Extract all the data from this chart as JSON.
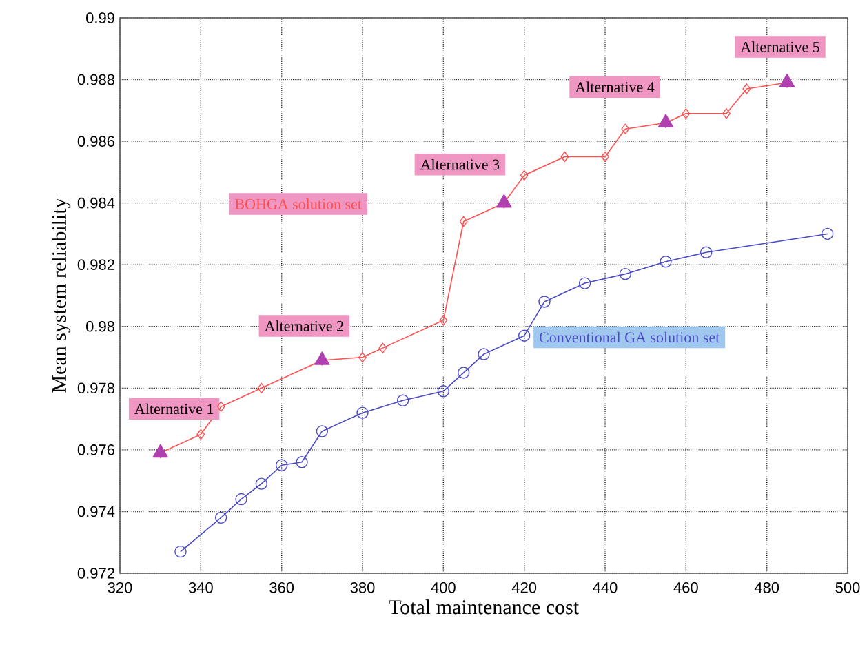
{
  "chart_data": {
    "type": "line",
    "xlabel": "Total maintenance cost",
    "ylabel": "Mean system reliability",
    "xlim": [
      320,
      500
    ],
    "ylim": [
      0.972,
      0.99
    ],
    "xticks": [
      320,
      340,
      360,
      380,
      400,
      420,
      440,
      460,
      480,
      500
    ],
    "yticks": [
      0.972,
      0.974,
      0.976,
      0.978,
      0.98,
      0.982,
      0.984,
      0.986,
      0.988,
      0.99
    ],
    "grid": true,
    "series": [
      {
        "name": "BOHGA solution set",
        "color": "#ff5050",
        "marker": "diamond",
        "x": [
          330,
          340,
          345,
          355,
          370,
          380,
          385,
          400,
          405,
          415,
          420,
          430,
          440,
          445,
          455,
          460,
          470,
          475,
          485
        ],
        "values": [
          0.9759,
          0.9765,
          0.9774,
          0.978,
          0.9789,
          0.979,
          0.9793,
          0.9802,
          0.9834,
          0.984,
          0.9849,
          0.9855,
          0.9855,
          0.9864,
          0.9866,
          0.9869,
          0.9869,
          0.9877,
          0.9879
        ]
      },
      {
        "name": "Conventional GA solution set",
        "color": "#4a4ac8",
        "marker": "circle",
        "x": [
          335,
          345,
          350,
          355,
          360,
          365,
          370,
          380,
          390,
          400,
          405,
          410,
          420,
          425,
          435,
          445,
          455,
          465,
          495
        ],
        "values": [
          0.9727,
          0.9738,
          0.9744,
          0.9749,
          0.9755,
          0.9756,
          0.9766,
          0.9772,
          0.9776,
          0.9779,
          0.9785,
          0.9791,
          0.9797,
          0.9808,
          0.9814,
          0.9817,
          0.9821,
          0.9824,
          0.983
        ]
      },
      {
        "type": "scatter",
        "color": "#b040b0",
        "marker": "triangle",
        "x": [
          330,
          370,
          415,
          455,
          485
        ],
        "values": [
          0.9759,
          0.9789,
          0.984,
          0.9866,
          0.9879
        ]
      }
    ],
    "annotations": [
      {
        "text": "Alternative 1",
        "x": 330,
        "y": 0.9759
      },
      {
        "text": "Alternative 2",
        "x": 370,
        "y": 0.9789
      },
      {
        "text": "Alternative 3",
        "x": 415,
        "y": 0.984
      },
      {
        "text": "Alternative 4",
        "x": 455,
        "y": 0.9866
      },
      {
        "text": "Alternative 5",
        "x": 485,
        "y": 0.9879
      }
    ]
  }
}
